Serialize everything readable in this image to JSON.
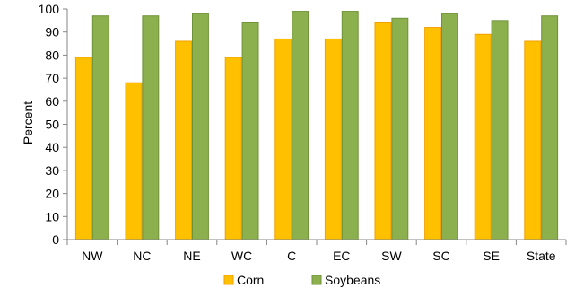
{
  "chart_data": {
    "type": "bar",
    "title": "",
    "xlabel": "",
    "ylabel": "Percent",
    "ylim": [
      0,
      100
    ],
    "ytick_step": 10,
    "grid": false,
    "legend_position": "bottom",
    "categories": [
      "NW",
      "NC",
      "NE",
      "WC",
      "C",
      "EC",
      "SW",
      "SC",
      "SE",
      "State"
    ],
    "series": [
      {
        "name": "Corn",
        "color": "#FFC000",
        "stroke": "#F2A100",
        "values": [
          79,
          68,
          86,
          79,
          87,
          87,
          94,
          92,
          89,
          86
        ]
      },
      {
        "name": "Soybeans",
        "color": "#8CB04E",
        "stroke": "#6E9238",
        "values": [
          97,
          97,
          98,
          94,
          99,
          99,
          96,
          98,
          95,
          97
        ]
      }
    ]
  }
}
